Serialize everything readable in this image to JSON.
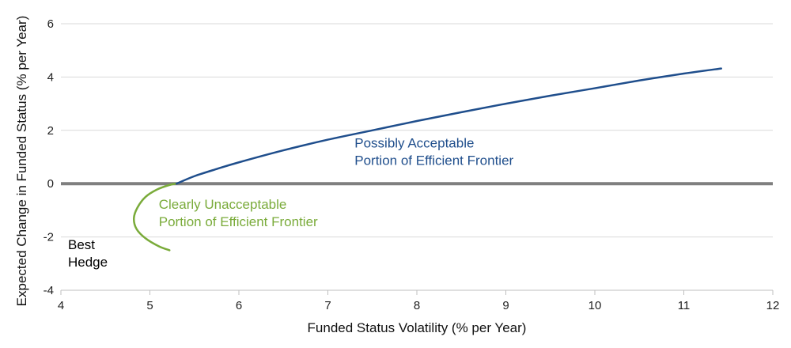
{
  "chart_data": {
    "type": "line",
    "title": "",
    "xlabel": "Funded Status Volatility (% per Year)",
    "ylabel": "Expected Change in Funded Status (% per Year)",
    "xlim": [
      4,
      12
    ],
    "ylim": [
      -4,
      6
    ],
    "xticks": [
      4,
      5,
      6,
      7,
      8,
      9,
      10,
      11,
      12
    ],
    "yticks": [
      -4,
      -2,
      0,
      2,
      4,
      6
    ],
    "grid": "horizontal",
    "reference_line": {
      "y": 0,
      "color": "#7f7f7f"
    },
    "series": [
      {
        "name": "Clearly Unacceptable Portion of Efficient Frontier",
        "color": "#7aab3a",
        "x": [
          5.3,
          5.22,
          5.08,
          4.95,
          4.86,
          4.82,
          4.85,
          4.95,
          5.1,
          5.22
        ],
        "y": [
          0.0,
          -0.05,
          -0.22,
          -0.5,
          -0.9,
          -1.3,
          -1.7,
          -2.05,
          -2.35,
          -2.5
        ]
      },
      {
        "name": "Possibly Acceptable Portion of Efficient Frontier",
        "color": "#1f4e8c",
        "x": [
          5.3,
          5.5,
          5.75,
          6.0,
          6.5,
          7.0,
          7.5,
          8.0,
          8.5,
          9.0,
          9.5,
          10.0,
          10.5,
          11.0,
          11.42
        ],
        "y": [
          0.0,
          0.28,
          0.55,
          0.8,
          1.25,
          1.65,
          2.0,
          2.35,
          2.68,
          3.0,
          3.3,
          3.58,
          3.87,
          4.13,
          4.32
        ]
      }
    ],
    "annotations": [
      {
        "lines": [
          "Possibly Acceptable",
          "Portion of Efficient Frontier"
        ],
        "x": 7.3,
        "y": 1.35,
        "color": "#1f4e8c"
      },
      {
        "lines": [
          "Clearly Unacceptable",
          "Portion of Efficient Frontier"
        ],
        "x": 5.1,
        "y": -0.95,
        "color": "#7aab3a"
      },
      {
        "lines": [
          "Best",
          "Hedge"
        ],
        "x": 4.08,
        "y": -2.45,
        "color": "#000000"
      }
    ]
  }
}
